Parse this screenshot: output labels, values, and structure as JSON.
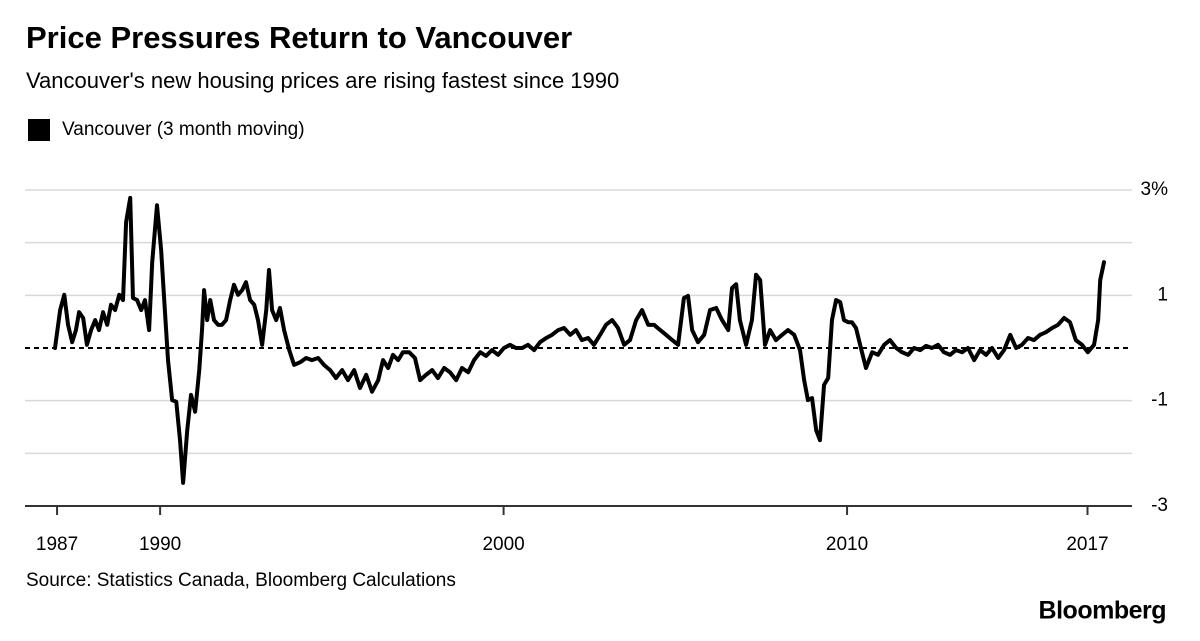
{
  "chart_data": {
    "type": "line",
    "title": "Price Pressures Return to Vancouver",
    "subtitle": "Vancouver's new housing prices are rising fastest since 1990",
    "source": "Source: Statistics Canada, Bloomberg Calculations",
    "brand": "Bloomberg",
    "legend": "top-left",
    "grid": true,
    "reference_line": 0,
    "xlim": [
      1986.94,
      2017.48
    ],
    "xticks": [
      1987,
      1990,
      2000,
      2010,
      2017
    ],
    "ylim": [
      -3,
      3
    ],
    "yticks": [
      {
        "value": 3,
        "label": "3%"
      },
      1,
      -1,
      -3
    ],
    "minor_yticks": [
      2,
      -2
    ],
    "x": [
      1986.94,
      1987.09,
      1987.21,
      1987.32,
      1987.44,
      1987.55,
      1987.64,
      1987.76,
      1987.87,
      1987.99,
      1988.11,
      1988.22,
      1988.34,
      1988.46,
      1988.57,
      1988.69,
      1988.81,
      1988.92,
      1989.01,
      1989.13,
      1989.21,
      1989.33,
      1989.45,
      1989.56,
      1989.68,
      1989.77,
      1989.91,
      1990.03,
      1990.12,
      1990.23,
      1990.35,
      1990.47,
      1990.58,
      1990.67,
      1990.79,
      1990.9,
      1991.02,
      1991.14,
      1991.22,
      1991.28,
      1991.37,
      1991.46,
      1991.57,
      1991.69,
      1991.8,
      1991.92,
      1992.04,
      1992.15,
      1992.27,
      1992.39,
      1992.5,
      1992.62,
      1992.74,
      1992.85,
      1992.97,
      1993.09,
      1993.17,
      1993.26,
      1993.38,
      1993.49,
      1993.61,
      1993.76,
      1993.9,
      1994.08,
      1994.25,
      1994.42,
      1994.6,
      1994.77,
      1994.95,
      1995.12,
      1995.3,
      1995.47,
      1995.65,
      1995.82,
      1996.0,
      1996.17,
      1996.35,
      1996.49,
      1996.64,
      1996.78,
      1996.93,
      1997.07,
      1997.25,
      1997.42,
      1997.57,
      1997.74,
      1997.92,
      1998.09,
      1998.27,
      1998.44,
      1998.62,
      1998.79,
      1998.97,
      1999.14,
      1999.32,
      1999.49,
      1999.66,
      1999.84,
      2000.01,
      2000.19,
      2000.36,
      2000.54,
      2000.71,
      2000.89,
      2001.06,
      2001.24,
      2001.41,
      2001.59,
      2001.76,
      2001.94,
      2002.11,
      2002.28,
      2002.46,
      2002.63,
      2002.81,
      2002.98,
      2003.16,
      2003.33,
      2003.51,
      2003.68,
      2003.86,
      2004.03,
      2004.21,
      2004.38,
      2004.56,
      2004.73,
      2004.91,
      2005.08,
      2005.25,
      2005.37,
      2005.49,
      2005.66,
      2005.84,
      2006.01,
      2006.19,
      2006.36,
      2006.54,
      2006.65,
      2006.77,
      2006.88,
      2007.06,
      2007.23,
      2007.35,
      2007.47,
      2007.61,
      2007.76,
      2007.93,
      2008.11,
      2008.28,
      2008.46,
      2008.63,
      2008.75,
      2008.86,
      2008.98,
      2009.1,
      2009.21,
      2009.33,
      2009.45,
      2009.56,
      2009.68,
      2009.8,
      2009.91,
      2010.03,
      2010.14,
      2010.26,
      2010.38,
      2010.55,
      2010.73,
      2010.9,
      2011.08,
      2011.25,
      2011.43,
      2011.6,
      2011.78,
      2011.95,
      2012.13,
      2012.3,
      2012.47,
      2012.65,
      2012.82,
      2013.0,
      2013.17,
      2013.35,
      2013.52,
      2013.7,
      2013.87,
      2014.05,
      2014.22,
      2014.4,
      2014.57,
      2014.75,
      2014.92,
      2015.09,
      2015.27,
      2015.44,
      2015.62,
      2015.79,
      2015.97,
      2016.14,
      2016.32,
      2016.49,
      2016.66,
      2016.84,
      2017.01,
      2017.19,
      2017.31,
      2017.37,
      2017.48
    ],
    "series": [
      {
        "name": "Vancouver (3 month moving)",
        "color": "#000000",
        "values": [
          0,
          0.72,
          1.01,
          0.44,
          0.11,
          0.34,
          0.68,
          0.57,
          0.06,
          0.34,
          0.53,
          0.34,
          0.68,
          0.44,
          0.82,
          0.72,
          1.01,
          0.91,
          2.39,
          2.85,
          0.95,
          0.91,
          0.72,
          0.91,
          0.34,
          1.63,
          2.71,
          1.86,
          0.91,
          -0.23,
          -0.99,
          -1.02,
          -1.75,
          -2.56,
          -1.56,
          -0.89,
          -1.21,
          -0.42,
          0.34,
          1.1,
          0.53,
          0.91,
          0.53,
          0.44,
          0.44,
          0.53,
          0.91,
          1.2,
          1.01,
          1.1,
          1.25,
          0.91,
          0.82,
          0.53,
          0.06,
          0.72,
          1.48,
          0.72,
          0.53,
          0.76,
          0.34,
          -0.04,
          -0.32,
          -0.27,
          -0.19,
          -0.23,
          -0.19,
          -0.32,
          -0.42,
          -0.57,
          -0.42,
          -0.61,
          -0.42,
          -0.76,
          -0.51,
          -0.83,
          -0.61,
          -0.23,
          -0.38,
          -0.13,
          -0.23,
          -0.08,
          -0.08,
          -0.19,
          -0.61,
          -0.51,
          -0.42,
          -0.57,
          -0.38,
          -0.46,
          -0.61,
          -0.38,
          -0.46,
          -0.23,
          -0.08,
          -0.15,
          -0.04,
          -0.13,
          0,
          0.06,
          0,
          0,
          0.06,
          -0.04,
          0.11,
          0.19,
          0.25,
          0.34,
          0.38,
          0.25,
          0.34,
          0.15,
          0.19,
          0.06,
          0.25,
          0.44,
          0.53,
          0.38,
          0.06,
          0.15,
          0.53,
          0.72,
          0.44,
          0.44,
          0.34,
          0.25,
          0.15,
          0.06,
          0.95,
          0.99,
          0.34,
          0.11,
          0.25,
          0.72,
          0.76,
          0.53,
          0.34,
          1.14,
          1.21,
          0.53,
          0.06,
          0.53,
          1.39,
          1.29,
          0.06,
          0.34,
          0.15,
          0.25,
          0.34,
          0.25,
          -0.04,
          -0.61,
          -0.99,
          -0.95,
          -1.56,
          -1.75,
          -0.7,
          -0.57,
          0.53,
          0.91,
          0.87,
          0.53,
          0.49,
          0.49,
          0.38,
          0.06,
          -0.38,
          -0.08,
          -0.13,
          0.06,
          0.15,
          0,
          -0.08,
          -0.13,
          0,
          -0.04,
          0.04,
          0,
          0.06,
          -0.08,
          -0.13,
          -0.04,
          -0.08,
          0,
          -0.23,
          -0.04,
          -0.13,
          0,
          -0.19,
          -0.04,
          0.25,
          0,
          0.06,
          0.19,
          0.15,
          0.25,
          0.3,
          0.38,
          0.44,
          0.57,
          0.49,
          0.15,
          0.06,
          -0.08,
          0.06,
          0.53,
          1.29,
          1.63
        ]
      }
    ]
  }
}
